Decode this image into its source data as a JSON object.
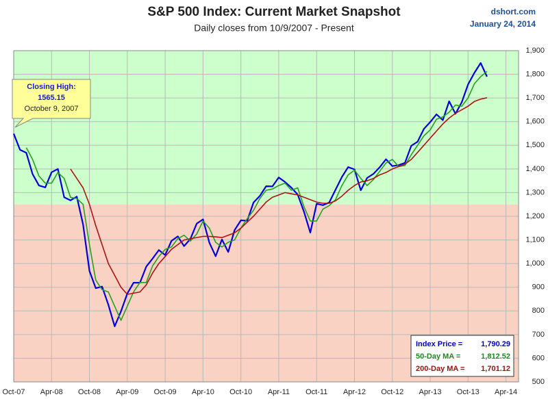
{
  "chart_data": {
    "type": "line",
    "title": "S&P 500 Index: Current Market Snapshot",
    "subtitle": "Daily closes from 10/9/2007 - Present",
    "source": "dshort.com",
    "date": "January 24, 2014",
    "annotation": {
      "lines": [
        "Closing High:",
        "1565.15",
        "October 9, 2007"
      ]
    },
    "info_box": [
      {
        "label": "Index Price =",
        "value": "1,790.29",
        "color": "#0000cc"
      },
      {
        "label": "50-Day MA =",
        "value": "1,812.52",
        "color": "#1a8a1a"
      },
      {
        "label": "200-Day MA =",
        "value": "1,701.12",
        "color": "#a01010"
      }
    ],
    "bands": [
      {
        "from": 1250,
        "to": 1900,
        "color": "#ccffcc"
      },
      {
        "from": 500,
        "to": 1250,
        "color": "#fad2c4"
      }
    ],
    "grid": true,
    "x": [
      "2007-10",
      "2007-11",
      "2007-12",
      "2008-01",
      "2008-02",
      "2008-03",
      "2008-04",
      "2008-05",
      "2008-06",
      "2008-07",
      "2008-08",
      "2008-09",
      "2008-10",
      "2008-11",
      "2008-12",
      "2009-01",
      "2009-02",
      "2009-03",
      "2009-04",
      "2009-05",
      "2009-06",
      "2009-07",
      "2009-08",
      "2009-09",
      "2009-10",
      "2009-11",
      "2009-12",
      "2010-01",
      "2010-02",
      "2010-03",
      "2010-04",
      "2010-05",
      "2010-06",
      "2010-07",
      "2010-08",
      "2010-09",
      "2010-10",
      "2010-11",
      "2010-12",
      "2011-01",
      "2011-02",
      "2011-03",
      "2011-04",
      "2011-05",
      "2011-06",
      "2011-07",
      "2011-08",
      "2011-09",
      "2011-10",
      "2011-11",
      "2011-12",
      "2012-01",
      "2012-02",
      "2012-03",
      "2012-04",
      "2012-05",
      "2012-06",
      "2012-07",
      "2012-08",
      "2012-09",
      "2012-10",
      "2012-11",
      "2012-12",
      "2013-01",
      "2013-02",
      "2013-03",
      "2013-04",
      "2013-05",
      "2013-06",
      "2013-07",
      "2013-08",
      "2013-09",
      "2013-10",
      "2013-11",
      "2013-12",
      "2014-01"
    ],
    "series": [
      {
        "name": "Index Price",
        "color": "#0000dd",
        "values": [
          1549,
          1481,
          1468,
          1378,
          1330,
          1322,
          1386,
          1400,
          1280,
          1267,
          1283,
          1165,
          969,
          896,
          903,
          826,
          735,
          798,
          873,
          919,
          919,
          987,
          1021,
          1057,
          1036,
          1096,
          1115,
          1074,
          1104,
          1169,
          1187,
          1089,
          1031,
          1102,
          1049,
          1141,
          1183,
          1181,
          1258,
          1286,
          1327,
          1326,
          1364,
          1345,
          1321,
          1292,
          1219,
          1131,
          1253,
          1247,
          1258,
          1312,
          1366,
          1408,
          1398,
          1310,
          1362,
          1379,
          1407,
          1441,
          1412,
          1416,
          1426,
          1498,
          1515,
          1569,
          1598,
          1631,
          1606,
          1686,
          1633,
          1682,
          1757,
          1806,
          1848,
          1790
        ]
      },
      {
        "name": "50-Day MA",
        "color": "#22a022",
        "values": [
          null,
          null,
          1490,
          1440,
          1370,
          1340,
          1340,
          1385,
          1360,
          1280,
          1275,
          1250,
          1080,
          930,
          890,
          880,
          820,
          760,
          820,
          880,
          920,
          920,
          990,
          1030,
          1060,
          1070,
          1105,
          1120,
          1095,
          1125,
          1180,
          1150,
          1090,
          1070,
          1090,
          1100,
          1150,
          1190,
          1225,
          1275,
          1310,
          1315,
          1330,
          1340,
          1310,
          1320,
          1240,
          1180,
          1180,
          1230,
          1245,
          1270,
          1330,
          1375,
          1395,
          1360,
          1330,
          1355,
          1390,
          1425,
          1440,
          1410,
          1415,
          1460,
          1500,
          1540,
          1565,
          1610,
          1620,
          1640,
          1670,
          1665,
          1700,
          1760,
          1790,
          1812
        ]
      },
      {
        "name": "200-Day MA",
        "color": "#b01010",
        "values": [
          null,
          null,
          null,
          null,
          null,
          null,
          null,
          null,
          null,
          1400,
          1360,
          1320,
          1250,
          1160,
          1080,
          1000,
          950,
          900,
          870,
          875,
          880,
          910,
          960,
          1000,
          1030,
          1060,
          1080,
          1100,
          1105,
          1110,
          1115,
          1115,
          1113,
          1110,
          1120,
          1130,
          1150,
          1175,
          1200,
          1230,
          1260,
          1280,
          1290,
          1300,
          1295,
          1290,
          1280,
          1270,
          1260,
          1255,
          1255,
          1265,
          1285,
          1310,
          1330,
          1345,
          1350,
          1360,
          1375,
          1385,
          1400,
          1410,
          1420,
          1440,
          1470,
          1500,
          1530,
          1560,
          1590,
          1615,
          1635,
          1650,
          1665,
          1685,
          1695,
          1701
        ]
      }
    ],
    "xlim": [
      "2007-10",
      "2014-06"
    ],
    "xticks": [
      {
        "value": "2007-10",
        "label": "Oct-07"
      },
      {
        "value": "2008-04",
        "label": "Apr-08"
      },
      {
        "value": "2008-10",
        "label": "Oct-08"
      },
      {
        "value": "2009-04",
        "label": "Apr-09"
      },
      {
        "value": "2009-10",
        "label": "Oct-09"
      },
      {
        "value": "2010-04",
        "label": "Apr-10"
      },
      {
        "value": "2010-10",
        "label": "Oct-10"
      },
      {
        "value": "2011-04",
        "label": "Apr-11"
      },
      {
        "value": "2011-10",
        "label": "Oct-11"
      },
      {
        "value": "2012-04",
        "label": "Apr-12"
      },
      {
        "value": "2012-10",
        "label": "Oct-12"
      },
      {
        "value": "2013-04",
        "label": "Apr-13"
      },
      {
        "value": "2013-10",
        "label": "Oct-13"
      },
      {
        "value": "2014-04",
        "label": "Apr-14"
      }
    ],
    "ylim": [
      500,
      1900
    ],
    "yticks": [
      500,
      600,
      700,
      800,
      900,
      {
        "value": 1000,
        "label": "1,000"
      },
      {
        "value": 1100,
        "label": "1,100"
      },
      {
        "value": 1200,
        "label": "1,200"
      },
      {
        "value": 1300,
        "label": "1,300"
      },
      {
        "value": 1400,
        "label": "1,400"
      },
      {
        "value": 1500,
        "label": "1,500"
      },
      {
        "value": 1600,
        "label": "1,600"
      },
      {
        "value": 1700,
        "label": "1,700"
      },
      {
        "value": 1800,
        "label": "1,800"
      },
      {
        "value": 1900,
        "label": "1,900"
      }
    ]
  }
}
